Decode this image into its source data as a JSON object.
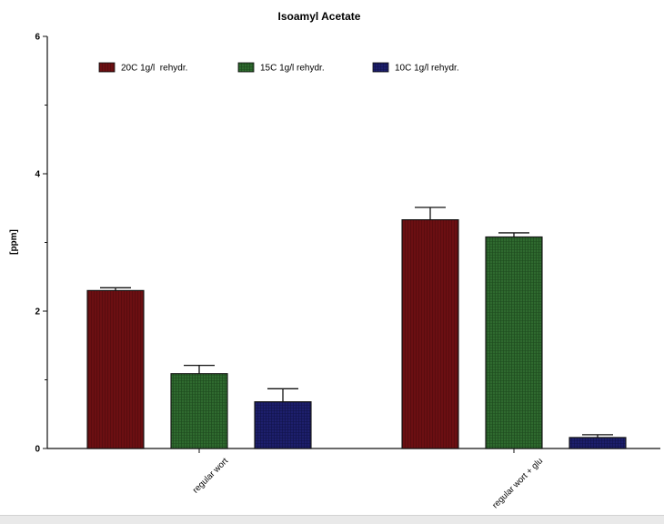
{
  "chart_data": {
    "type": "bar",
    "title": "Isoamyl Acetate",
    "ylabel": "[ppm]",
    "xlabel": "",
    "ylim": [
      0,
      6
    ],
    "yticks": [
      0,
      2,
      4,
      6
    ],
    "categories": [
      "regular wort",
      "regular wort + glu"
    ],
    "series": [
      {
        "name": "20C 1g/l  rehydr.",
        "color": "#6b0f12",
        "values": [
          2.3,
          3.33
        ],
        "errors": [
          0.04,
          0.18
        ]
      },
      {
        "name": "15C 1g/l rehydr.",
        "color": "#2f6a2f",
        "values": [
          1.09,
          3.08
        ],
        "errors": [
          0.12,
          0.06
        ]
      },
      {
        "name": "10C 1g/l rehydr.",
        "color": "#1d1f6c",
        "values": [
          0.68,
          0.16
        ],
        "errors": [
          0.19,
          0.04
        ]
      }
    ],
    "legend_position": "top",
    "grid": false
  }
}
